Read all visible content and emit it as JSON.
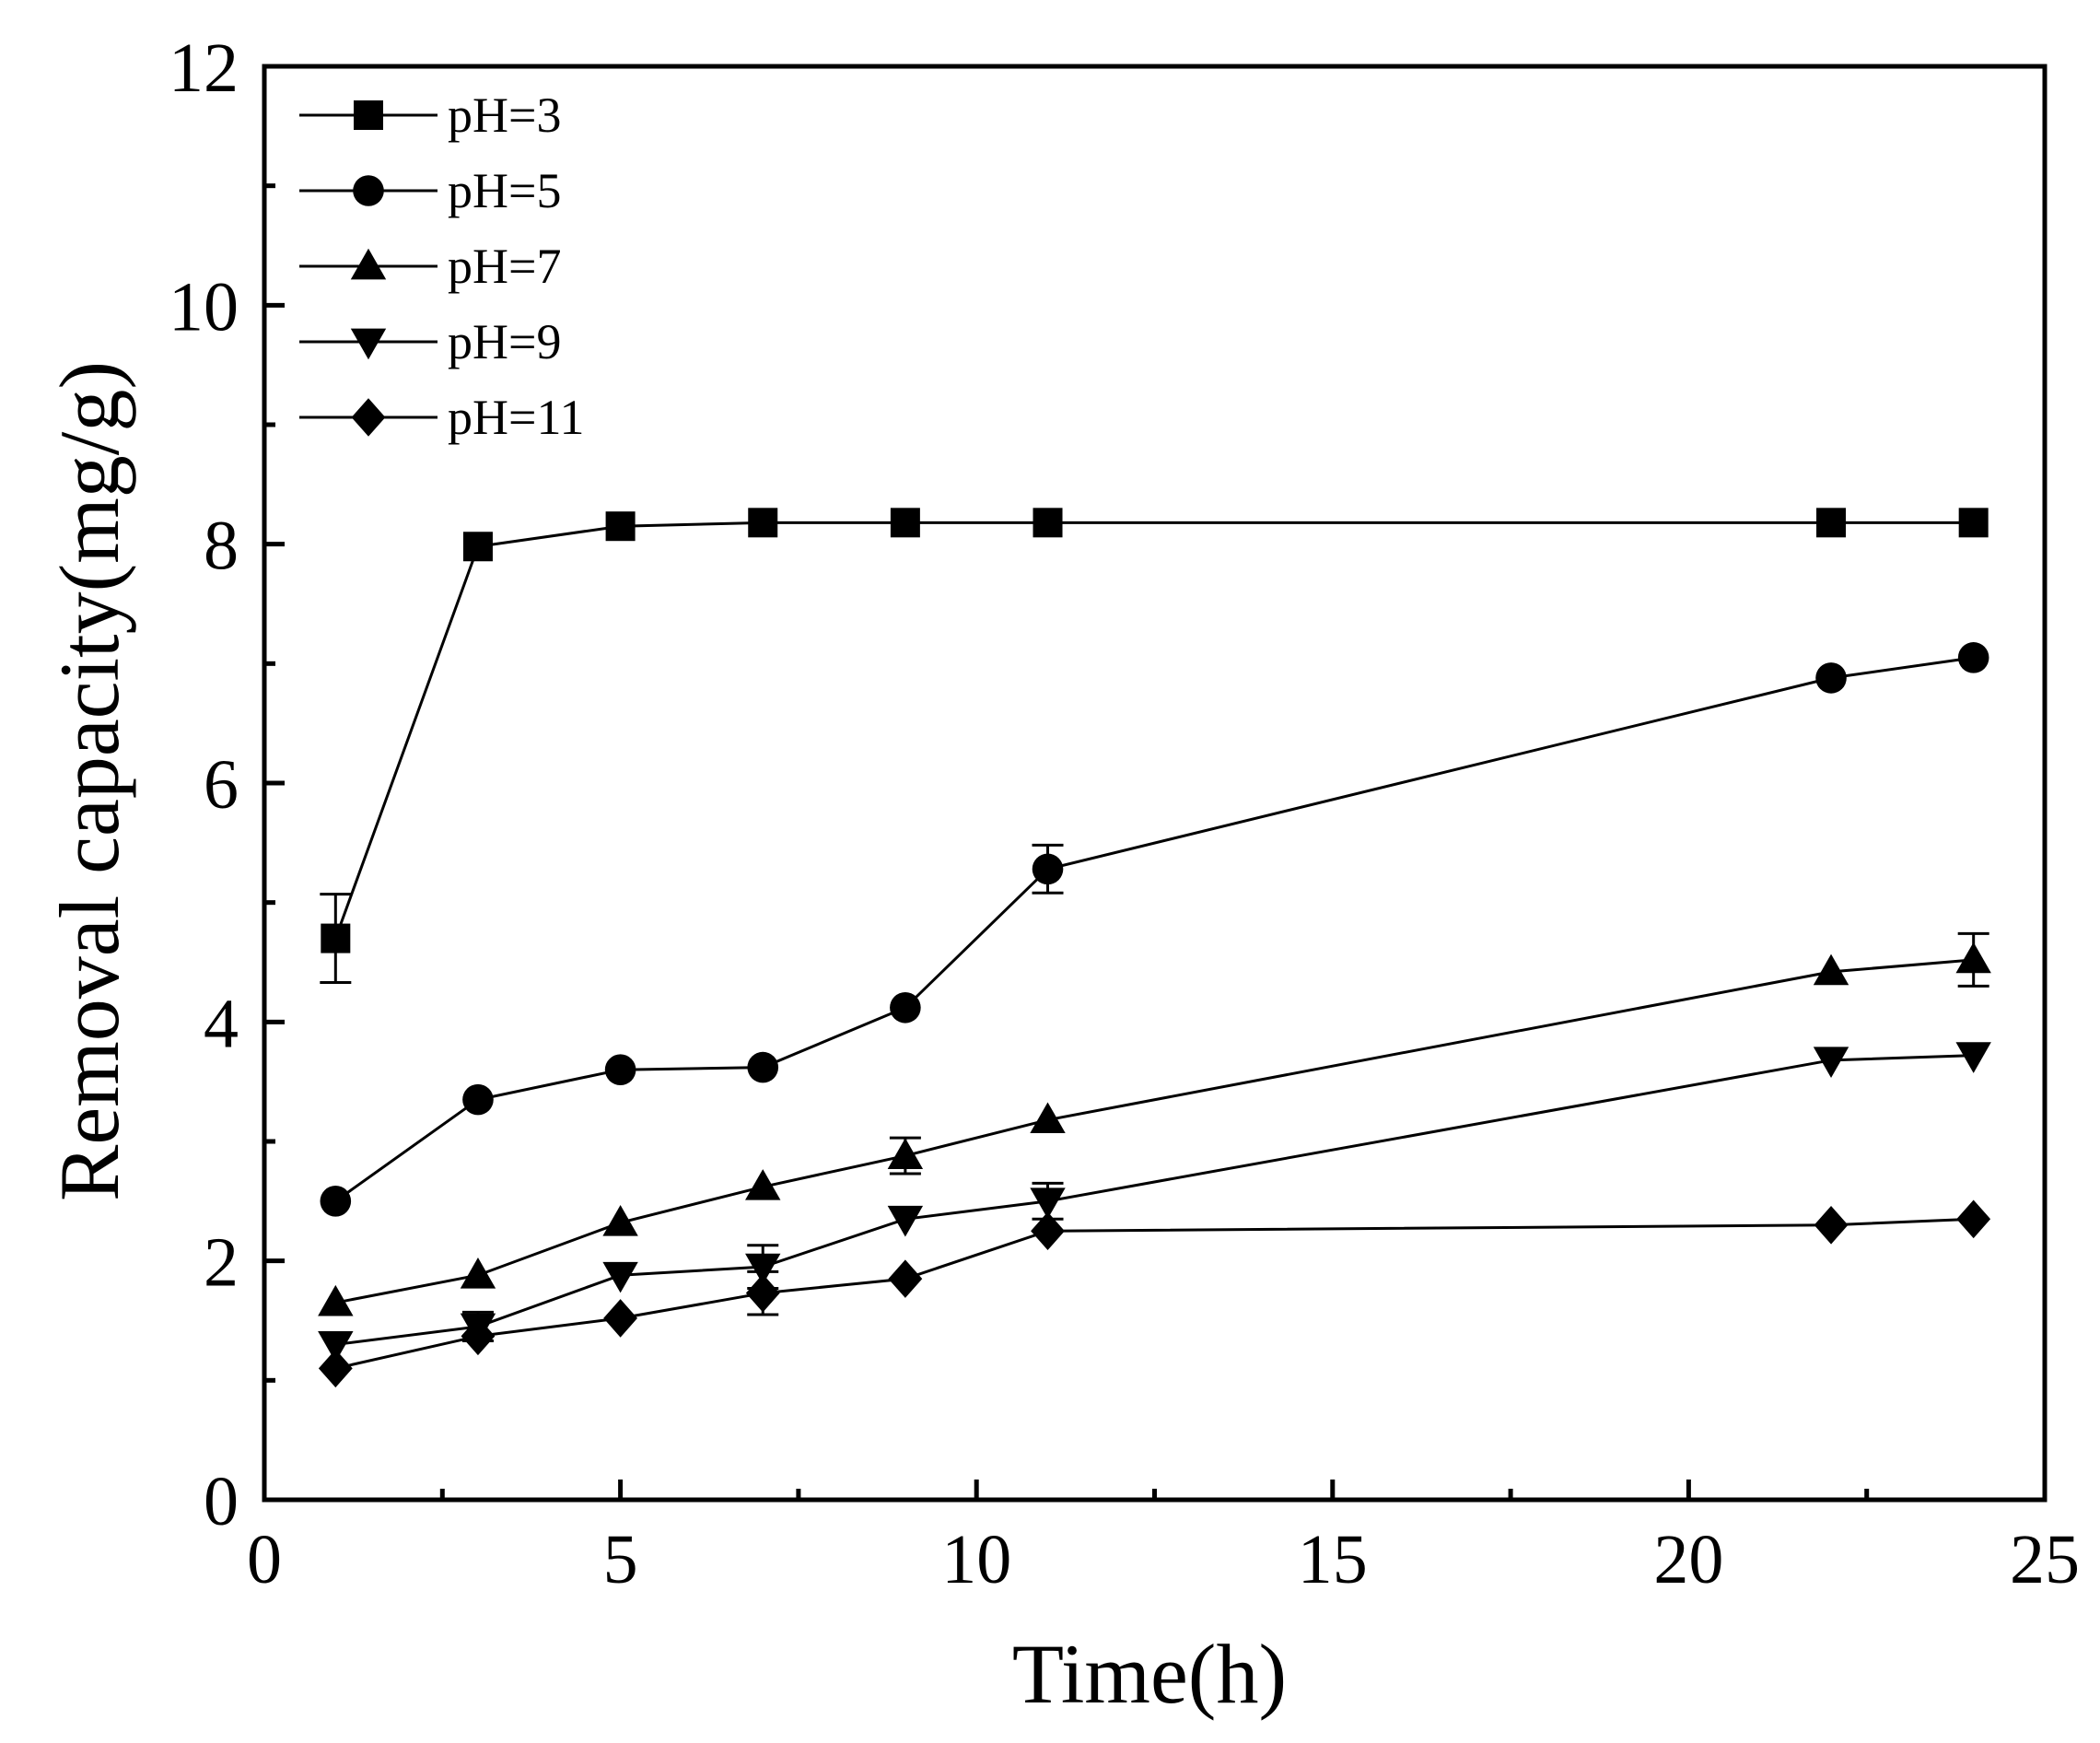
{
  "chart_data": {
    "type": "line",
    "title": "",
    "xlabel": "Time(h)",
    "ylabel": "Removal capacity(mg/g)",
    "xlim": [
      0,
      25
    ],
    "ylim": [
      0,
      12
    ],
    "xticks": [
      0,
      5,
      10,
      15,
      20,
      25
    ],
    "yticks": [
      0,
      2,
      4,
      6,
      8,
      10,
      12
    ],
    "x_tick_labels": [
      "0",
      "5",
      "10",
      "15",
      "20",
      "25"
    ],
    "y_tick_labels": [
      "0",
      "2",
      "4",
      "6",
      "8",
      "10",
      "12"
    ],
    "x": [
      1,
      3,
      5,
      7,
      9,
      11,
      22,
      24
    ],
    "legend_position": "top-left",
    "grid": false,
    "series": [
      {
        "name": "pH=3",
        "marker": "square",
        "values": [
          4.7,
          7.98,
          8.15,
          8.18,
          8.18,
          8.18,
          8.18,
          8.18
        ],
        "errors": [
          0.37,
          0.05,
          0.03,
          0.03,
          0.03,
          0.03,
          0.03,
          0.03
        ]
      },
      {
        "name": "pH=5",
        "marker": "circle",
        "values": [
          2.5,
          3.35,
          3.6,
          3.62,
          4.12,
          5.28,
          6.88,
          7.05
        ],
        "errors": [
          0.05,
          0.05,
          0.05,
          0.05,
          0.05,
          0.2,
          0.05,
          0.05
        ]
      },
      {
        "name": "pH=7",
        "marker": "triangle-up",
        "values": [
          1.65,
          1.88,
          2.32,
          2.62,
          2.88,
          3.18,
          4.42,
          4.52
        ],
        "errors": [
          0.05,
          0.05,
          0.05,
          0.05,
          0.15,
          0.05,
          0.05,
          0.22
        ]
      },
      {
        "name": "pH=9",
        "marker": "triangle-down",
        "values": [
          1.3,
          1.45,
          1.88,
          1.95,
          2.35,
          2.5,
          3.68,
          3.72
        ],
        "errors": [
          0.05,
          0.12,
          0.05,
          0.18,
          0.05,
          0.15,
          0.05,
          0.05
        ]
      },
      {
        "name": "pH=11",
        "marker": "diamond",
        "values": [
          1.1,
          1.37,
          1.52,
          1.73,
          1.85,
          2.25,
          2.3,
          2.35
        ],
        "errors": [
          0.05,
          0.05,
          0.05,
          0.18,
          0.05,
          0.05,
          0.05,
          0.05
        ]
      }
    ]
  }
}
